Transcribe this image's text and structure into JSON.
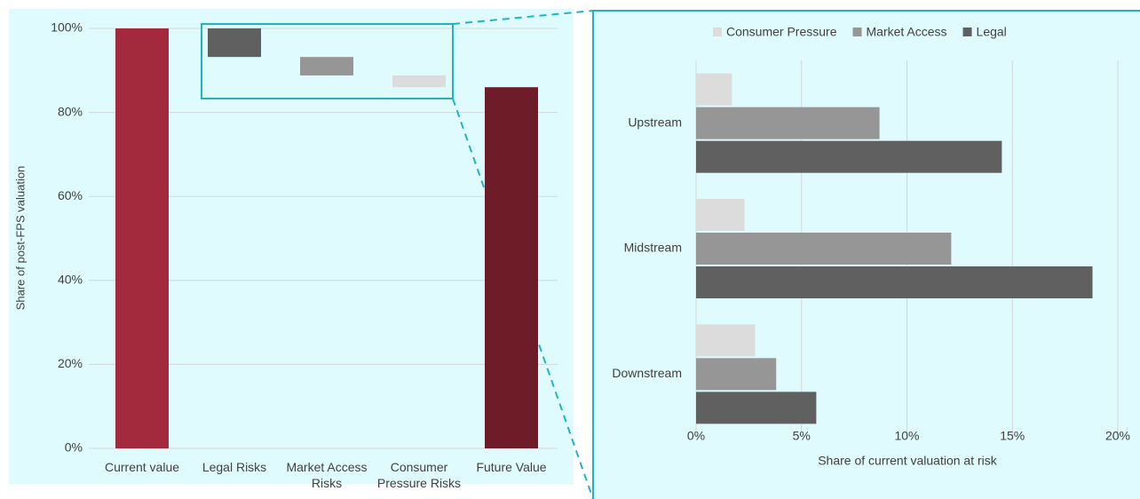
{
  "chart_data": [
    {
      "type": "waterfall",
      "y_label": "Share of post-FPS valuation",
      "categories": [
        "Current value",
        "Legal Risks",
        "Market Access Risks",
        "Consumer Pressure Risks",
        "Future Value"
      ],
      "values": [
        100,
        -6.8,
        -4.4,
        -2.8,
        86
      ],
      "measure": [
        "absolute",
        "relative",
        "relative",
        "relative",
        "total"
      ],
      "colors": [
        "#a3293d",
        "#606060",
        "#969696",
        "#dcdcdc",
        "#6e1c28"
      ],
      "ylim": [
        0,
        100
      ],
      "yticks": [
        {
          "value": 0,
          "label": "0%"
        },
        {
          "value": 20,
          "label": "20%"
        },
        {
          "value": 40,
          "label": "40%"
        },
        {
          "value": 60,
          "label": "60%"
        },
        {
          "value": 80,
          "label": "80%"
        },
        {
          "value": 100,
          "label": "100%"
        }
      ],
      "grid": true
    },
    {
      "type": "hbar",
      "x_label": "Share of current valuation at risk",
      "categories": [
        "Upstream",
        "Midstream",
        "Downstream"
      ],
      "series": [
        {
          "name": "Consumer Pressure",
          "color": "#dcdcdc",
          "values": [
            1.7,
            2.3,
            2.8
          ]
        },
        {
          "name": "Market Access",
          "color": "#969696",
          "values": [
            8.7,
            12.1,
            3.8
          ]
        },
        {
          "name": "Legal",
          "color": "#606060",
          "values": [
            14.5,
            18.8,
            5.7
          ]
        }
      ],
      "xlim": [
        0,
        20
      ],
      "xticks": [
        {
          "value": 0,
          "label": "0%"
        },
        {
          "value": 5,
          "label": "5%"
        },
        {
          "value": 10,
          "label": "10%"
        },
        {
          "value": 15,
          "label": "15%"
        },
        {
          "value": 20,
          "label": "20%"
        }
      ],
      "legend": "top",
      "grid": true
    }
  ]
}
